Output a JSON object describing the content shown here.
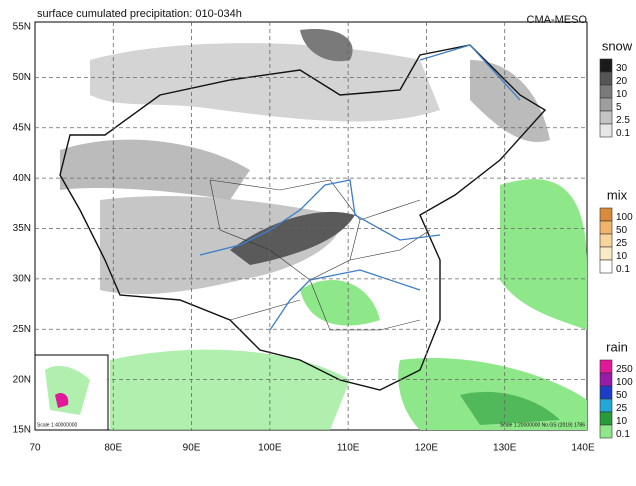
{
  "header": {
    "title": "surface cumulated precipitation: 010-034h",
    "source": "CMA-MESO"
  },
  "map": {
    "lat_labels": [
      "55N",
      "50N",
      "45N",
      "40N",
      "35N",
      "30N",
      "25N",
      "20N",
      "15N"
    ],
    "lon_labels": [
      "70",
      "80E",
      "90E",
      "100E",
      "110E",
      "120E",
      "130E",
      "140E"
    ],
    "inset_scale": "Scale 1:40000000",
    "map_note": "Scale 1:20000000 No.GS (2019) 1786"
  },
  "legends": [
    {
      "title": "snow",
      "labels": [
        "30",
        "20",
        "10",
        "5",
        "2.5",
        "0.1"
      ],
      "colors": [
        "#1a1a1a",
        "#555555",
        "#7a7a7a",
        "#9e9e9e",
        "#c4c4c4",
        "#e6e6e6"
      ]
    },
    {
      "title": "mix",
      "labels": [
        "100",
        "50",
        "25",
        "10",
        "0.1"
      ],
      "colors": [
        "#d98a3a",
        "#f0b56a",
        "#f7d49a",
        "#fbeac6",
        "#ffffff"
      ]
    },
    {
      "title": "rain",
      "labels": [
        "250",
        "100",
        "50",
        "25",
        "10",
        "0.1"
      ],
      "colors": [
        "#e2189a",
        "#9a1aa8",
        "#1f3cc8",
        "#20a8d8",
        "#2a9a3a",
        "#8ee88a"
      ]
    }
  ]
}
